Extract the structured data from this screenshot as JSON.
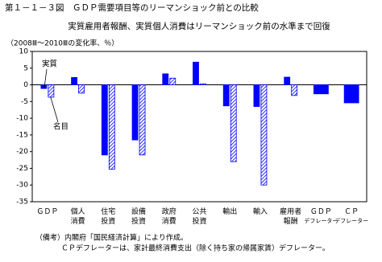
{
  "chart_data": {
    "type": "bar",
    "title": "第１－１－３図　ＧＤＰ需要項目等のリーマンショック前との比較",
    "subtitle": "実質雇用者報酬、実質個人消費はリーマンショック前の水準まで回復",
    "y_label": "（2008Ⅲ～2010Ⅲの変化率、％）",
    "notes": [
      "（備考）内閣府「国民経済計算」により作成。",
      "ＣＰデフレーターは、家計最終消費支出（除く持ち家の帰属家賃）デフレーター。"
    ],
    "categories": [
      "ＧＤＰ",
      "個人\n消費",
      "住宅\n投資",
      "設備\n投資",
      "政府\n消費",
      "公共\n投資",
      "輸出",
      "輸入",
      "雇用者\n報酬",
      "ＧＤＰ\nデフレーター",
      "ＣＰ\nデフレーター"
    ],
    "series": [
      {
        "name": "実質",
        "color": "#0000ff",
        "pattern": "solid",
        "values": [
          -1.1,
          2.2,
          -21,
          -16.5,
          3.3,
          6.8,
          -6.3,
          -6.5,
          2.3,
          -2.7,
          -5.4
        ]
      },
      {
        "name": "名目",
        "color": "#0000ff",
        "pattern": "hatch",
        "values": [
          -3.7,
          -2.5,
          -25.3,
          -21,
          2.0,
          0.3,
          -23,
          -30,
          -3.2,
          null,
          null
        ]
      }
    ],
    "ylim": [
      -35,
      10
    ],
    "yticks": [
      10,
      5,
      0,
      -5,
      -10,
      -15,
      -20,
      -25,
      -30,
      -35
    ],
    "grid": false
  }
}
